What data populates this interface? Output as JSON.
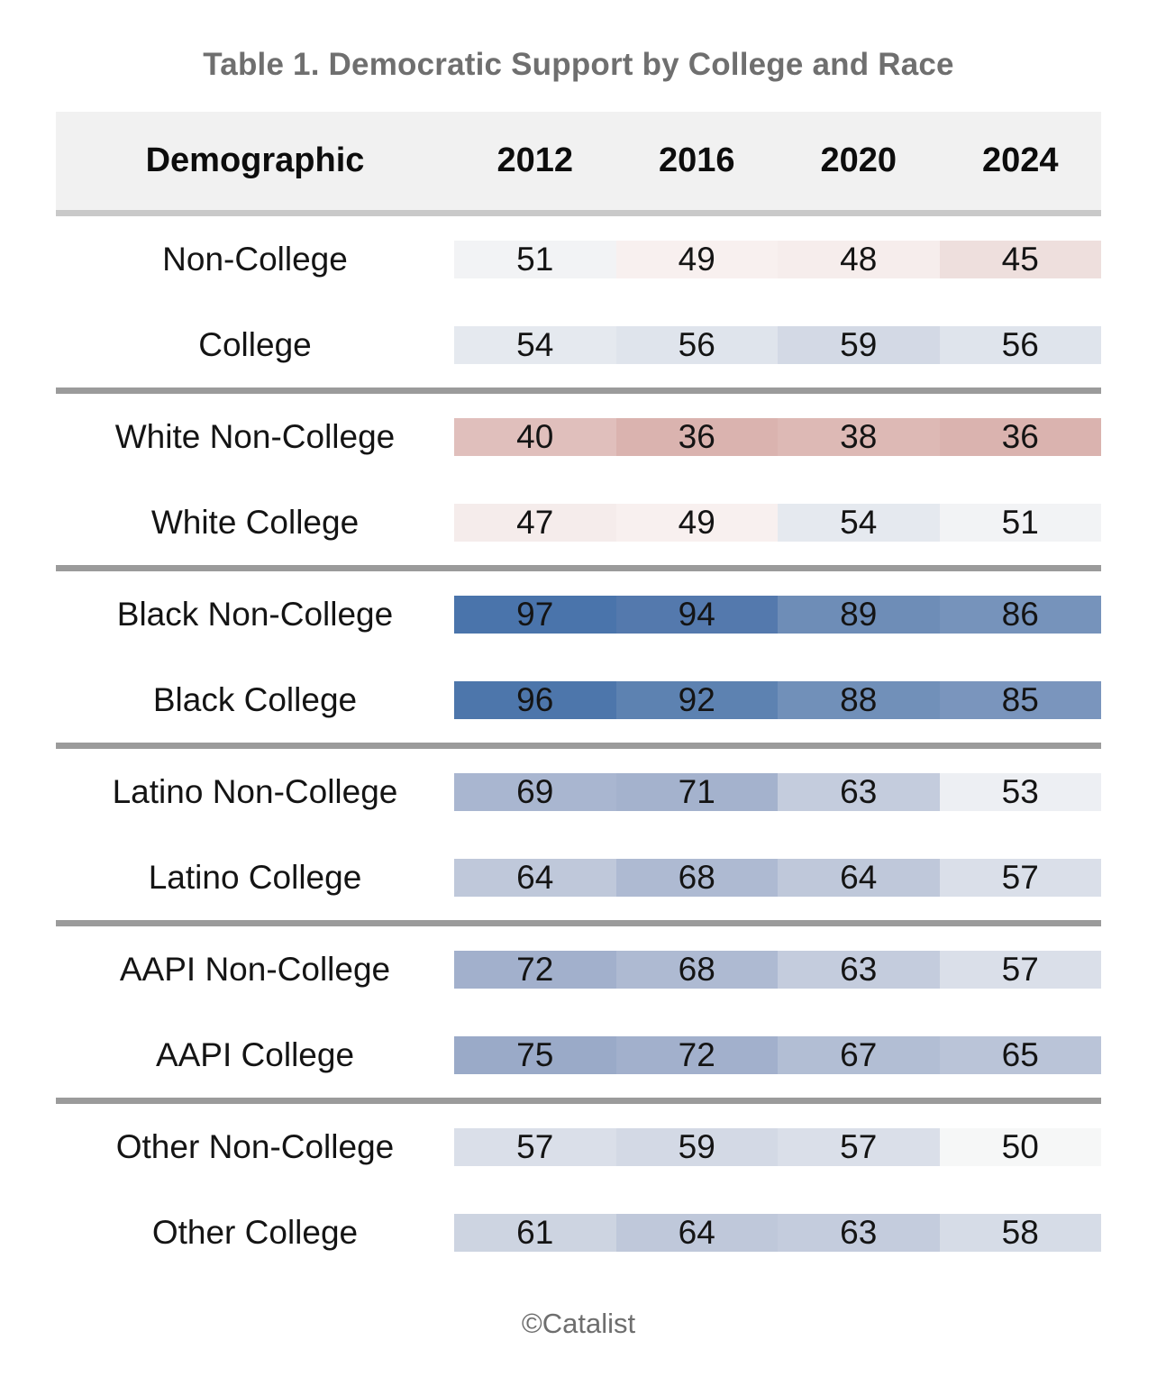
{
  "footer": {
    "text": "©Catalist"
  },
  "colors": {
    "title_text": "#6f6f6f",
    "header_bg": "#f1f1f1",
    "header_separator": "#c9c9c9",
    "group_separator": "#9b9b9b",
    "body_text": "#141414",
    "footer_text": "#6e6e6e"
  },
  "chart_data": {
    "type": "heatmap",
    "title": "Table 1. Democratic Support by College and Race",
    "columns": [
      "Demographic",
      "2012",
      "2016",
      "2020",
      "2024"
    ],
    "color_scale": {
      "low_color": "#dab3af",
      "mid_color": "#f7f7f7",
      "high_color": "#4a74ab",
      "diverging_midpoint": 50
    },
    "groups": [
      {
        "rows": [
          {
            "label": "Non-College",
            "cells": [
              {
                "v": 51,
                "bg": "#f2f3f5"
              },
              {
                "v": 49,
                "bg": "#f8f0ef"
              },
              {
                "v": 48,
                "bg": "#f6edec"
              },
              {
                "v": 45,
                "bg": "#eedfdd"
              }
            ]
          },
          {
            "label": "College",
            "cells": [
              {
                "v": 54,
                "bg": "#e5e9ef"
              },
              {
                "v": 56,
                "bg": "#dfe4ec"
              },
              {
                "v": 59,
                "bg": "#d3d9e5"
              },
              {
                "v": 56,
                "bg": "#dfe4ec"
              }
            ]
          }
        ]
      },
      {
        "rows": [
          {
            "label": "White Non-College",
            "cells": [
              {
                "v": 40,
                "bg": "#e0bfbc"
              },
              {
                "v": 36,
                "bg": "#dab3af"
              },
              {
                "v": 38,
                "bg": "#ddb9b5"
              },
              {
                "v": 36,
                "bg": "#dab3af"
              }
            ]
          },
          {
            "label": "White College",
            "cells": [
              {
                "v": 47,
                "bg": "#f5eceb"
              },
              {
                "v": 49,
                "bg": "#f8f0ef"
              },
              {
                "v": 54,
                "bg": "#e5e9ef"
              },
              {
                "v": 51,
                "bg": "#f2f3f5"
              }
            ]
          }
        ]
      },
      {
        "rows": [
          {
            "label": "Black Non-College",
            "cells": [
              {
                "v": 97,
                "bg": "#4a74ab"
              },
              {
                "v": 94,
                "bg": "#5479ad"
              },
              {
                "v": 89,
                "bg": "#6e8db7"
              },
              {
                "v": 86,
                "bg": "#7693bb"
              }
            ]
          },
          {
            "label": "Black College",
            "cells": [
              {
                "v": 96,
                "bg": "#4d76ab"
              },
              {
                "v": 92,
                "bg": "#5d82b1"
              },
              {
                "v": 88,
                "bg": "#7190b9"
              },
              {
                "v": 85,
                "bg": "#7a95bd"
              }
            ]
          }
        ]
      },
      {
        "rows": [
          {
            "label": "Latino Non-College",
            "cells": [
              {
                "v": 69,
                "bg": "#a9b6d0"
              },
              {
                "v": 71,
                "bg": "#a4b2cd"
              },
              {
                "v": 63,
                "bg": "#c4ccdd"
              },
              {
                "v": 53,
                "bg": "#edeff3"
              }
            ]
          },
          {
            "label": "Latino College",
            "cells": [
              {
                "v": 64,
                "bg": "#bfc8da"
              },
              {
                "v": 68,
                "bg": "#aebad2"
              },
              {
                "v": 64,
                "bg": "#bfc8da"
              },
              {
                "v": 57,
                "bg": "#dadfe9"
              }
            ]
          }
        ]
      },
      {
        "rows": [
          {
            "label": "AAPI Non-College",
            "cells": [
              {
                "v": 72,
                "bg": "#a2b0cc"
              },
              {
                "v": 68,
                "bg": "#aebad2"
              },
              {
                "v": 63,
                "bg": "#c4ccdd"
              },
              {
                "v": 57,
                "bg": "#dadfe9"
              }
            ]
          },
          {
            "label": "AAPI College",
            "cells": [
              {
                "v": 75,
                "bg": "#9aaac8"
              },
              {
                "v": 72,
                "bg": "#a2b0cc"
              },
              {
                "v": 67,
                "bg": "#b2bed4"
              },
              {
                "v": 65,
                "bg": "#bac4d8"
              }
            ]
          }
        ]
      },
      {
        "rows": [
          {
            "label": "Other Non-College",
            "cells": [
              {
                "v": 57,
                "bg": "#dadfe9"
              },
              {
                "v": 59,
                "bg": "#d3d9e5"
              },
              {
                "v": 57,
                "bg": "#dadfe9"
              },
              {
                "v": 50,
                "bg": "#f6f7f7"
              }
            ]
          },
          {
            "label": "Other College",
            "cells": [
              {
                "v": 61,
                "bg": "#cdd4e1"
              },
              {
                "v": 64,
                "bg": "#bfc8da"
              },
              {
                "v": 63,
                "bg": "#c4ccdd"
              },
              {
                "v": 58,
                "bg": "#d6dce7"
              }
            ]
          }
        ]
      }
    ]
  }
}
